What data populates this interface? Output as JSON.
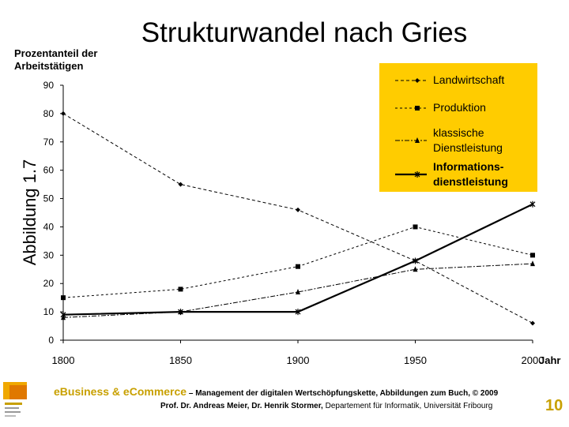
{
  "slide": {
    "title": "Strukturwandel nach Gries",
    "y_caption": "Prozentanteil der Arbeitstätigen",
    "figure_label": "Abbildung 1.7",
    "page_number": "10"
  },
  "footer": {
    "brand": "eBusiness & eCommerce",
    "subtitle": " – Management der digitalen Wertschöpfungskette, Abbildungen zum Buch, © 2009",
    "authors": "Prof. Dr. Andreas Meier, Dr. Henrik Stormer, ",
    "department": "Departement für Informatik, Universität Fribourg",
    "accent_color": "#c8a000"
  },
  "chart_data": {
    "type": "line",
    "x": [
      1800,
      1850,
      1900,
      1950,
      2000
    ],
    "xlabel": "Jahr",
    "ylabel": "Prozentanteil der Arbeitstätigen",
    "ylim": [
      0,
      90
    ],
    "yticks": [
      0,
      10,
      20,
      30,
      40,
      50,
      60,
      70,
      80,
      90
    ],
    "xticks": [
      "1800",
      "1850",
      "1900",
      "1950",
      "2000"
    ],
    "grid": false,
    "legend_position": "top-right",
    "legend_color": "#ffcc00",
    "series": [
      {
        "name": "Landwirtschaft",
        "values": [
          80,
          55,
          46,
          28,
          6
        ],
        "marker": "diamond",
        "dash": "4,3",
        "width": 1
      },
      {
        "name": "Produktion",
        "values": [
          15,
          18,
          26,
          40,
          30
        ],
        "marker": "square",
        "dash": "3,3",
        "width": 1
      },
      {
        "name": "klassische\nDienstleistung",
        "values": [
          8,
          10,
          17,
          25,
          27
        ],
        "marker": "triangle",
        "dash": "6,2,2,2",
        "width": 1
      },
      {
        "name": "Informations-\ndienstleistung",
        "values": [
          9,
          10,
          10,
          28,
          48
        ],
        "marker": "star",
        "dash": "",
        "width": 2.2
      }
    ]
  }
}
